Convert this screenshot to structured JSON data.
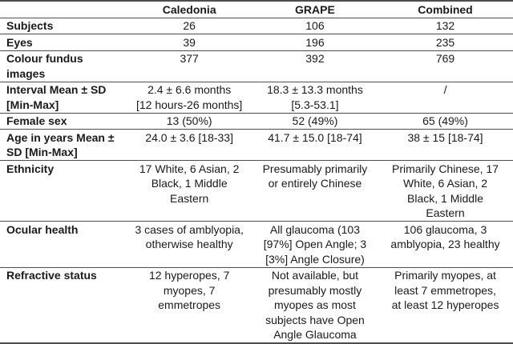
{
  "table": {
    "columns": [
      "",
      "Caledonia",
      "GRAPE",
      "Combined"
    ],
    "rows": [
      {
        "label": "Subjects",
        "values": [
          "26",
          "106",
          "132"
        ]
      },
      {
        "label": "Eyes",
        "values": [
          "39",
          "196",
          "235"
        ]
      },
      {
        "label": "Colour fundus images",
        "values": [
          "377",
          "392",
          "769"
        ]
      },
      {
        "label": "Interval Mean ± SD\n[Min-Max]",
        "values": [
          "2.4 ± 6.6 months\n[12 hours-26 months]",
          "18.3 ± 13.3 months\n[5.3-53.1]",
          "/"
        ]
      },
      {
        "label": "Female sex",
        "values": [
          "13 (50%)",
          "52 (49%)",
          "65 (49%)"
        ]
      },
      {
        "label": "Age in years Mean ±\nSD [Min-Max]",
        "values": [
          "24.0 ± 3.6 [18-33]",
          "41.7 ± 15.0 [18-74]",
          "38 ± 15 [18-74]"
        ]
      },
      {
        "label": "Ethnicity",
        "values": [
          "17 White, 6 Asian, 2\nBlack, 1 Middle\nEastern",
          "Presumably primarily\nor entirely Chinese",
          "Primarily Chinese, 17\nWhite, 6 Asian, 2\nBlack, 1 Middle\nEastern"
        ]
      },
      {
        "label": "Ocular health",
        "values": [
          "3 cases of amblyopia,\notherwise healthy",
          "All glaucoma (103\n[97%] Open Angle; 3\n[3%] Angle Closure)",
          "106 glaucoma, 3\namblyopia, 23 healthy"
        ]
      },
      {
        "label": "Refractive status",
        "values": [
          "12 hyperopes, 7\nmyopes, 7\nemmetropes",
          "Not available, but\npresumably mostly\nmyopes as most\nsubjects have Open\nAngle Glaucoma",
          "Primarily myopes, at\nleast 7 emmetropes,\nat least 12 hyperopes"
        ]
      }
    ],
    "colors": {
      "rule": "#4d4d4d",
      "text": "#1a1a1a",
      "background": "#ffffff"
    }
  }
}
